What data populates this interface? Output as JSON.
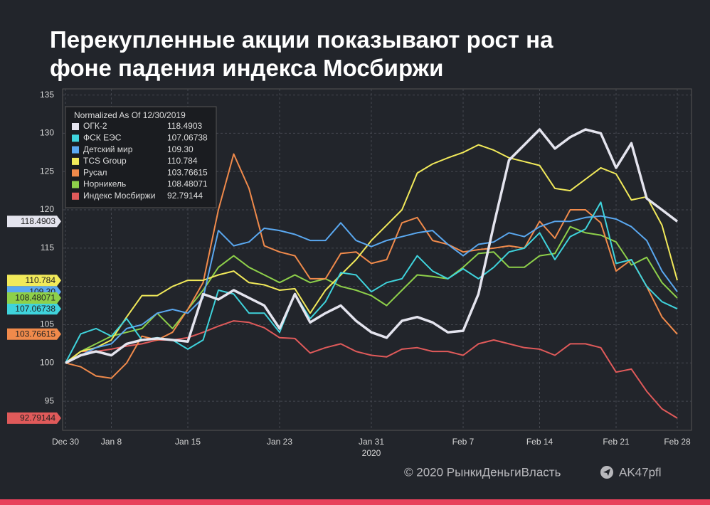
{
  "chart_data": {
    "type": "line",
    "title_lines": [
      "Перекупленные акции показывают рост на",
      "фоне падения индекса Мосбиржи"
    ],
    "legend_title": "Normalized As Of 12/30/2019",
    "categories": [
      "Dec 30",
      null,
      null,
      "Jan 8",
      null,
      null,
      null,
      null,
      "Jan 15",
      null,
      null,
      null,
      null,
      null,
      "Jan 23",
      null,
      null,
      null,
      null,
      null,
      "Jan 31",
      null,
      null,
      null,
      null,
      null,
      "Feb 7",
      null,
      null,
      null,
      null,
      "Feb 14",
      null,
      null,
      null,
      null,
      "Feb 21",
      null,
      null,
      null,
      "Feb 28"
    ],
    "x_sublabel": "2020",
    "ylim": [
      91.2,
      135.8
    ],
    "yticks": [
      95,
      100,
      105,
      110,
      115,
      120,
      125,
      130,
      135
    ],
    "grid": true,
    "series": [
      {
        "name": "ОГК-2",
        "color": "#e4e4ee",
        "last_label": "118.4903",
        "values": [
          100,
          101,
          101.5,
          101,
          102.5,
          103,
          103.2,
          103,
          102.8,
          109,
          108.3,
          109.5,
          108.5,
          107.5,
          104.5,
          109,
          105.3,
          106.5,
          107.5,
          105.5,
          104,
          103.3,
          105.5,
          106,
          105.3,
          104,
          104.2,
          109,
          118,
          126.5,
          128.5,
          130.5,
          128,
          129.5,
          130.5,
          130,
          125.5,
          128.7,
          121.5,
          120,
          118.4903
        ]
      },
      {
        "name": "ФСК ЕЭС",
        "color": "#3fd3dc",
        "last_label": "107.06738",
        "values": [
          100,
          103.8,
          104.5,
          103.5,
          105.8,
          103,
          103.3,
          103,
          101.8,
          103,
          109.5,
          109,
          106.5,
          106.5,
          104,
          109,
          105.8,
          108,
          111.8,
          111.5,
          109.3,
          110.5,
          111,
          114,
          112,
          111,
          112.3,
          111,
          112.5,
          114.5,
          115,
          117,
          113.5,
          116.5,
          117.5,
          121,
          113,
          113.5,
          110,
          108,
          107.06738
        ]
      },
      {
        "name": "Детский мир",
        "color": "#5aa8f0",
        "last_label": "109.30",
        "values": [
          100,
          101,
          102,
          102.5,
          104.5,
          105,
          106.5,
          107,
          106.5,
          108.5,
          117.3,
          115.3,
          115.8,
          117.6,
          117.3,
          116.8,
          116,
          116,
          118.3,
          116,
          115.2,
          116,
          116.5,
          117,
          117.3,
          115.5,
          114,
          115.5,
          115.8,
          117,
          116.5,
          117.8,
          118.5,
          118.5,
          119,
          119.2,
          118.8,
          117.8,
          116,
          112,
          109.3
        ]
      },
      {
        "name": "TCS Group",
        "color": "#f2ea5a",
        "last_label": "110.784",
        "values": [
          100,
          101.5,
          102,
          103,
          106,
          108.8,
          108.8,
          110,
          110.8,
          110.8,
          111.5,
          112,
          110.5,
          110.2,
          109.5,
          109.7,
          106.5,
          109.5,
          111.5,
          113.5,
          116,
          118,
          120,
          124.8,
          126,
          126.8,
          127.5,
          128.5,
          127.8,
          126.8,
          126.3,
          125.8,
          122.8,
          122.5,
          124,
          125.5,
          124.7,
          121.3,
          121.7,
          118,
          110.784
        ]
      },
      {
        "name": "Русал",
        "color": "#f08a4b",
        "last_label": "103.76615",
        "values": [
          100,
          99.5,
          98.3,
          98,
          100,
          103.5,
          103,
          104,
          107,
          110.5,
          120,
          127.3,
          122.8,
          115.3,
          114.5,
          114,
          111,
          111,
          114.3,
          114.5,
          113,
          113.5,
          118.3,
          119,
          116,
          115.5,
          114.5,
          114.8,
          115,
          115.3,
          115,
          118.5,
          116.3,
          120,
          120,
          118.3,
          112,
          113.5,
          110,
          106,
          103.76615
        ]
      },
      {
        "name": "Норникель",
        "color": "#8ed04a",
        "last_label": "108.48071",
        "values": [
          100,
          101.5,
          102.5,
          103.5,
          104,
          104.5,
          106.5,
          104.5,
          107,
          109.5,
          112.5,
          114,
          112.5,
          111.5,
          110.5,
          111.5,
          110.5,
          111,
          110,
          109.5,
          108.8,
          107.5,
          109.5,
          111.5,
          111.3,
          111,
          112.5,
          114.3,
          114.5,
          112.5,
          112.5,
          114,
          114.3,
          117.8,
          117,
          116.7,
          115.8,
          112.8,
          113.8,
          110.5,
          108.48071
        ]
      },
      {
        "name": "Индекс Мосбиржи",
        "color": "#e05a5a",
        "last_label": "92.79144",
        "values": [
          100,
          101.5,
          101.5,
          101.8,
          102.2,
          102.5,
          103,
          103,
          103.3,
          104,
          104.8,
          105.5,
          105.3,
          104.6,
          103.3,
          103.2,
          101.3,
          102,
          102.5,
          101.5,
          101,
          100.8,
          101.8,
          102,
          101.5,
          101.5,
          101,
          102.5,
          103,
          102.5,
          102,
          101.8,
          101,
          102.5,
          102.5,
          102,
          98.8,
          99.2,
          96.3,
          94,
          92.79144
        ]
      }
    ]
  },
  "footer": {
    "copyright": "© 2020  РынкиДеньгиВласть",
    "channel": "AK47pfl"
  }
}
